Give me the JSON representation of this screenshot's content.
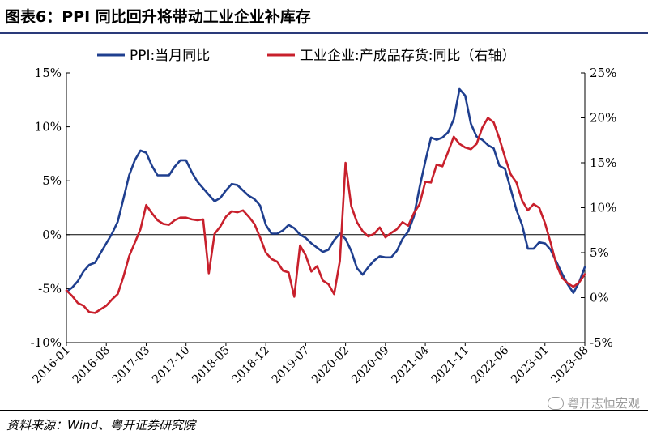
{
  "figure": {
    "title": "图表6：PPI 同比回升将带动工业企业补库存",
    "source": "资料来源：Wind、粤开证券研究院",
    "watermark": "粤开志恒宏观"
  },
  "chart_data": {
    "type": "line",
    "title": "",
    "legend_position": "top",
    "grid": false,
    "x_tick_labels": [
      "2016-01",
      "2016-08",
      "2017-03",
      "2017-10",
      "2018-05",
      "2018-12",
      "2019-07",
      "2020-02",
      "2020-09",
      "2021-04",
      "2021-11",
      "2022-06",
      "2023-01",
      "2023-08"
    ],
    "y_left": {
      "ylim": [
        -10,
        15
      ],
      "ticks": [
        -10,
        -5,
        0,
        5,
        10,
        15
      ],
      "tick_labels": [
        "-10%",
        "-5%",
        "0%",
        "5%",
        "10%",
        "15%"
      ]
    },
    "y_right": {
      "ylim": [
        -5,
        25
      ],
      "ticks": [
        -5,
        0,
        5,
        10,
        15,
        20,
        25
      ],
      "tick_labels": [
        "-5%",
        "0%",
        "5%",
        "10%",
        "15%",
        "20%",
        "25%"
      ]
    },
    "series": [
      {
        "name": "PPI:当月同比",
        "axis": "left",
        "color": "#1f3f8f",
        "x_start": "2016-01",
        "values": [
          -5.3,
          -4.9,
          -4.3,
          -3.4,
          -2.8,
          -2.6,
          -1.7,
          -0.8,
          0.1,
          1.2,
          3.3,
          5.5,
          6.9,
          7.8,
          7.6,
          6.4,
          5.5,
          5.5,
          5.5,
          6.3,
          6.9,
          6.9,
          5.8,
          4.9,
          4.3,
          3.7,
          3.1,
          3.4,
          4.1,
          4.7,
          4.6,
          4.1,
          3.6,
          3.3,
          2.7,
          0.9,
          0.1,
          0.1,
          0.4,
          0.9,
          0.6,
          0.0,
          -0.3,
          -0.8,
          -1.2,
          -1.6,
          -1.4,
          -0.5,
          0.1,
          -0.4,
          -1.5,
          -3.1,
          -3.7,
          -3.0,
          -2.4,
          -2.0,
          -2.1,
          -2.1,
          -1.5,
          -0.4,
          0.3,
          1.7,
          4.4,
          6.8,
          9.0,
          8.8,
          9.0,
          9.5,
          10.7,
          13.5,
          12.9,
          10.3,
          9.1,
          8.8,
          8.3,
          8.0,
          6.4,
          6.1,
          4.2,
          2.3,
          0.9,
          -1.3,
          -1.3,
          -0.7,
          -0.8,
          -1.4,
          -2.5,
          -3.6,
          -4.6,
          -5.4,
          -4.4,
          -3.0
        ]
      },
      {
        "name": "工业企业:产成品存货:同比（右轴）",
        "axis": "right",
        "color": "#c8202c",
        "x_start": "2016-01",
        "values": [
          0.8,
          0.2,
          -0.6,
          -0.9,
          -1.6,
          -1.7,
          -1.3,
          -0.9,
          -0.2,
          0.4,
          2.3,
          4.6,
          6.1,
          7.6,
          10.3,
          9.4,
          8.6,
          8.2,
          8.1,
          8.6,
          8.9,
          8.9,
          8.7,
          8.6,
          8.7,
          2.7,
          7.1,
          7.9,
          9.0,
          9.6,
          9.5,
          9.7,
          9.0,
          8.2,
          6.7,
          5.0,
          4.3,
          4.0,
          3.0,
          2.8,
          0.1,
          5.8,
          4.7,
          2.9,
          3.5,
          1.9,
          1.5,
          0.4,
          4.1,
          15.0,
          10.2,
          8.4,
          7.4,
          6.8,
          7.1,
          7.8,
          6.7,
          7.2,
          7.6,
          8.4,
          8.0,
          9.4,
          10.4,
          12.9,
          12.8,
          14.8,
          14.6,
          16.2,
          17.9,
          17.1,
          16.7,
          16.5,
          17.1,
          18.9,
          20.0,
          19.5,
          17.7,
          15.6,
          13.7,
          12.8,
          10.8,
          9.7,
          10.4,
          10.0,
          8.3,
          6.1,
          3.7,
          2.2,
          1.6,
          1.2,
          1.7,
          2.6
        ]
      }
    ]
  }
}
